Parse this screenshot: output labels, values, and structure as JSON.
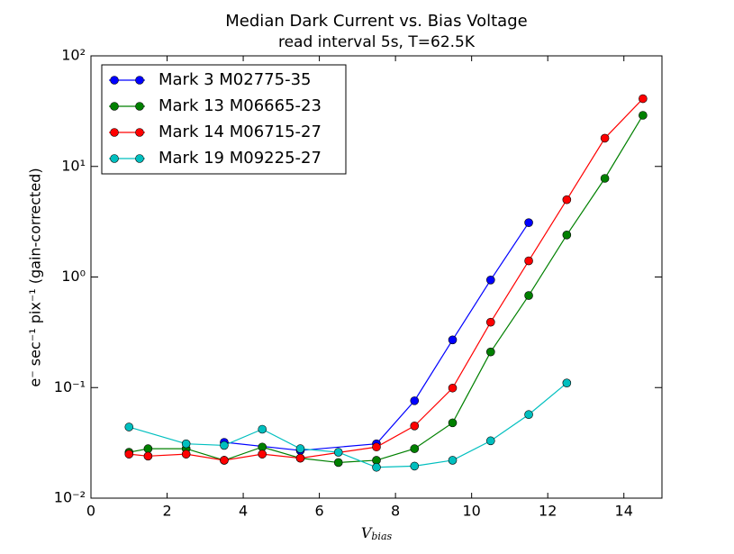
{
  "chart_data": {
    "type": "line",
    "title": "Median Dark Current vs. Bias Voltage",
    "subtitle": "read interval 5s, T=62.5K",
    "x_label": {
      "main": "V",
      "sub": "bias"
    },
    "y_label": "e⁻ sec⁻¹ pix⁻¹  (gain-corrected)",
    "log_y": true,
    "legend": "upper left",
    "xlim": [
      0,
      15
    ],
    "xticks": [
      0,
      2,
      4,
      6,
      8,
      10,
      12,
      14
    ],
    "ylim": [
      0.01,
      100
    ],
    "yticks": [
      {
        "value": 0.01,
        "label": "10⁻²"
      },
      {
        "value": 0.1,
        "label": "10⁻¹"
      },
      {
        "value": 1,
        "label": "10⁰"
      },
      {
        "value": 10,
        "label": "10¹"
      },
      {
        "value": 100,
        "label": "10²"
      }
    ],
    "series": [
      {
        "name": "Mark 3 M02775-35",
        "color": "#0000ff",
        "x": [
          3.5,
          5.5,
          7.5,
          8.5,
          9.5,
          10.5,
          11.5
        ],
        "values": [
          0.032,
          0.027,
          0.031,
          0.076,
          0.27,
          0.94,
          3.1
        ]
      },
      {
        "name": "Mark 13 M06665-23",
        "color": "#008000",
        "x": [
          1,
          1.5,
          2.5,
          3.5,
          4.5,
          5.5,
          6.5,
          7.5,
          8.5,
          9.5,
          10.5,
          11.5,
          12.5,
          13.5,
          14.5
        ],
        "values": [
          0.026,
          0.028,
          0.028,
          0.022,
          0.029,
          0.023,
          0.021,
          0.022,
          0.028,
          0.048,
          0.21,
          0.68,
          2.4,
          7.8,
          29
        ]
      },
      {
        "name": "Mark 14 M06715-27",
        "color": "#ff0000",
        "x": [
          1,
          1.5,
          2.5,
          3.5,
          4.5,
          5.5,
          7.5,
          8.5,
          9.5,
          10.5,
          11.5,
          12.5,
          13.5,
          14.5
        ],
        "values": [
          0.025,
          0.024,
          0.025,
          0.022,
          0.025,
          0.023,
          0.029,
          0.045,
          0.099,
          0.39,
          1.4,
          5.0,
          18,
          41
        ]
      },
      {
        "name": "Mark 19 M09225-27",
        "color": "#00bfbf",
        "x": [
          1,
          2.5,
          3.5,
          4.5,
          5.5,
          6.5,
          7.5,
          8.5,
          9.5,
          10.5,
          11.5,
          12.5
        ],
        "values": [
          0.044,
          0.031,
          0.03,
          0.042,
          0.028,
          0.026,
          0.019,
          0.0195,
          0.022,
          0.033,
          0.057,
          0.11
        ]
      }
    ]
  }
}
